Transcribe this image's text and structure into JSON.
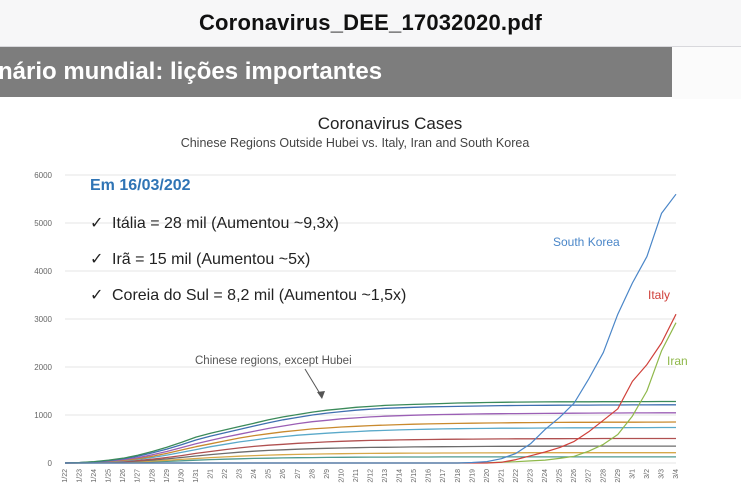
{
  "window": {
    "title": "Coronavirus_DEE_17032020.pdf"
  },
  "slide": {
    "banner_title": "nário mundial: lições importantes"
  },
  "notes": {
    "heading": "Em 16/03/202",
    "items": [
      {
        "icon": "checkmark-icon",
        "text": "Itália = 28 mil (Aumentou ~9,3x)"
      },
      {
        "icon": "checkmark-icon",
        "text": "Irã = 15 mil (Aumentou ~5x)"
      },
      {
        "icon": "checkmark-icon",
        "text": "Coreia do Sul = 8,2 mil (Aumentou ~1,5x)"
      }
    ]
  },
  "chart_data": {
    "type": "line",
    "title": "Coronavirus Cases",
    "subtitle": "Chinese Regions Outside Hubei vs. Italy, Iran and South Korea",
    "ylim": [
      0,
      6000
    ],
    "yticks": [
      0,
      1000,
      2000,
      3000,
      4000,
      5000,
      6000
    ],
    "x": [
      "1/22",
      "1/23",
      "1/24",
      "1/25",
      "1/26",
      "1/27",
      "1/28",
      "1/29",
      "1/30",
      "1/31",
      "2/1",
      "2/2",
      "2/3",
      "2/4",
      "2/5",
      "2/6",
      "2/7",
      "2/8",
      "2/9",
      "2/10",
      "2/11",
      "2/12",
      "2/13",
      "2/14",
      "2/15",
      "2/16",
      "2/17",
      "2/18",
      "2/19",
      "2/20",
      "2/21",
      "2/22",
      "2/23",
      "2/24",
      "2/25",
      "2/26",
      "2/27",
      "2/28",
      "2/29",
      "3/1",
      "3/2",
      "3/3",
      "3/4"
    ],
    "annotations": [
      "Chinese regions, except Hubei"
    ],
    "series": [
      {
        "name": "South Korea",
        "color": "#4a86c8",
        "values": [
          0,
          0,
          0,
          0,
          0,
          0,
          0,
          0,
          0,
          0,
          0,
          0,
          0,
          0,
          0,
          0,
          0,
          0,
          0,
          0,
          0,
          0,
          0,
          0,
          0,
          0,
          0,
          0,
          10,
          30,
          90,
          200,
          400,
          700,
          950,
          1250,
          1750,
          2300,
          3100,
          3750,
          4300,
          5200,
          5600
        ]
      },
      {
        "name": "Italy",
        "color": "#d0403a",
        "values": [
          0,
          0,
          0,
          0,
          0,
          0,
          0,
          0,
          0,
          0,
          0,
          0,
          0,
          0,
          0,
          0,
          0,
          0,
          0,
          0,
          0,
          0,
          0,
          0,
          0,
          0,
          0,
          0,
          0,
          0,
          15,
          70,
          150,
          230,
          320,
          450,
          650,
          890,
          1130,
          1700,
          2050,
          2500,
          3100
        ]
      },
      {
        "name": "Iran",
        "color": "#8fb84a",
        "values": [
          0,
          0,
          0,
          0,
          0,
          0,
          0,
          0,
          0,
          0,
          0,
          0,
          0,
          0,
          0,
          0,
          0,
          0,
          0,
          0,
          0,
          0,
          0,
          0,
          0,
          0,
          0,
          0,
          2,
          5,
          18,
          28,
          43,
          61,
          95,
          139,
          245,
          388,
          593,
          978,
          1501,
          2336,
          2922
        ]
      },
      {
        "color": "#3b8a5a",
        "values": [
          0,
          10,
          30,
          60,
          100,
          160,
          240,
          330,
          430,
          540,
          620,
          690,
          760,
          830,
          900,
          960,
          1010,
          1060,
          1100,
          1130,
          1160,
          1180,
          1200,
          1210,
          1220,
          1230,
          1240,
          1250,
          1255,
          1260,
          1265,
          1268,
          1270,
          1272,
          1274,
          1275,
          1276,
          1277,
          1278,
          1279,
          1280,
          1281,
          1282
        ]
      },
      {
        "color": "#3f6fb0",
        "values": [
          0,
          8,
          25,
          50,
          90,
          140,
          210,
          290,
          380,
          480,
          560,
          630,
          700,
          770,
          840,
          900,
          950,
          1000,
          1040,
          1070,
          1100,
          1120,
          1140,
          1150,
          1160,
          1170,
          1175,
          1180,
          1185,
          1190,
          1195,
          1198,
          1200,
          1202,
          1204,
          1206,
          1207,
          1208,
          1209,
          1210,
          1211,
          1212,
          1213
        ]
      },
      {
        "color": "#9b5fb5",
        "values": [
          0,
          6,
          20,
          40,
          70,
          110,
          170,
          240,
          320,
          400,
          470,
          540,
          600,
          660,
          720,
          770,
          820,
          860,
          890,
          920,
          940,
          960,
          975,
          985,
          995,
          1005,
          1010,
          1015,
          1020,
          1024,
          1027,
          1030,
          1032,
          1034,
          1036,
          1038,
          1040,
          1041,
          1042,
          1043,
          1044,
          1045,
          1046
        ]
      },
      {
        "color": "#c98a2e",
        "values": [
          0,
          5,
          15,
          30,
          55,
          90,
          140,
          200,
          270,
          340,
          400,
          460,
          520,
          570,
          610,
          650,
          680,
          710,
          730,
          750,
          765,
          780,
          790,
          800,
          808,
          815,
          820,
          825,
          830,
          833,
          836,
          839,
          841,
          843,
          845,
          847,
          848,
          849,
          850,
          851,
          852,
          853,
          854
        ]
      },
      {
        "color": "#5aa9c9",
        "values": [
          0,
          4,
          12,
          25,
          45,
          75,
          115,
          165,
          220,
          280,
          340,
          390,
          440,
          480,
          520,
          550,
          580,
          600,
          620,
          640,
          655,
          670,
          680,
          690,
          698,
          705,
          710,
          715,
          718,
          721,
          724,
          726,
          728,
          730,
          732,
          733,
          734,
          735,
          736,
          737,
          738,
          739,
          740
        ]
      },
      {
        "color": "#b05050",
        "values": [
          0,
          3,
          9,
          18,
          32,
          52,
          80,
          115,
          155,
          200,
          240,
          280,
          315,
          345,
          370,
          390,
          410,
          425,
          440,
          452,
          462,
          470,
          476,
          482,
          486,
          490,
          493,
          496,
          498,
          500,
          502,
          504,
          505,
          506,
          507,
          508,
          509,
          510,
          510,
          510,
          510,
          510,
          510
        ]
      },
      {
        "color": "#6c6c6c",
        "values": [
          0,
          2,
          7,
          14,
          25,
          40,
          60,
          85,
          115,
          145,
          175,
          200,
          225,
          245,
          262,
          276,
          288,
          298,
          306,
          313,
          319,
          324,
          328,
          332,
          335,
          338,
          340,
          342,
          344,
          346,
          347,
          348,
          349,
          350,
          351,
          352,
          353,
          353,
          353,
          353,
          353,
          353,
          353
        ]
      },
      {
        "color": "#d6a84a",
        "values": [
          0,
          1,
          4,
          9,
          16,
          26,
          40,
          56,
          74,
          94,
          112,
          128,
          142,
          154,
          164,
          172,
          179,
          185,
          190,
          194,
          197,
          200,
          202,
          204,
          206,
          207,
          208,
          209,
          210,
          211,
          212,
          213,
          214,
          214,
          214,
          214,
          214,
          214,
          214,
          214,
          214,
          214,
          214
        ]
      },
      {
        "color": "#4f9a8f",
        "values": [
          0,
          1,
          3,
          6,
          10,
          16,
          24,
          34,
          46,
          58,
          70,
          80,
          88,
          95,
          101,
          106,
          110,
          113,
          116,
          118,
          120,
          122,
          123,
          124,
          125,
          126,
          127,
          127,
          128,
          128,
          128,
          128,
          128,
          128,
          128,
          128,
          128,
          128,
          128,
          128,
          128,
          128,
          128
        ]
      }
    ]
  }
}
